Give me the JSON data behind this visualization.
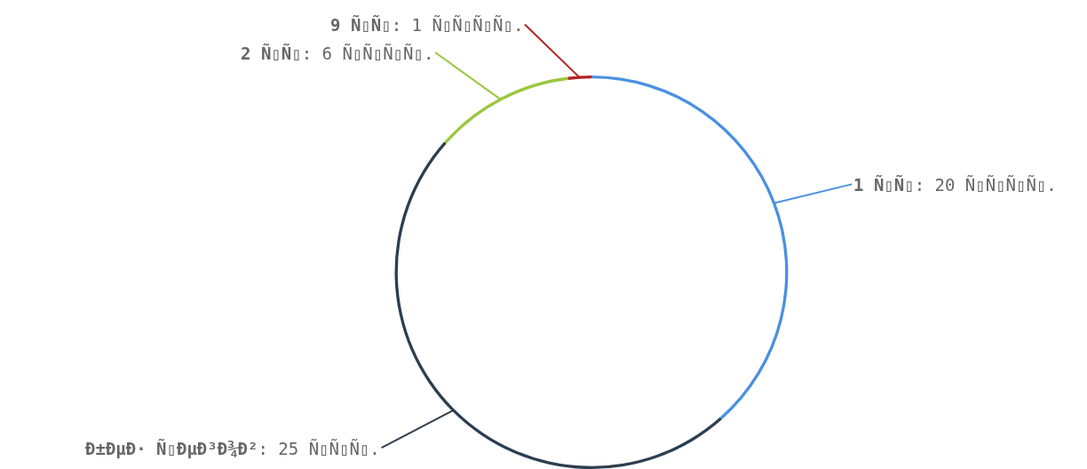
{
  "chart_data": {
    "type": "donut",
    "categories": [
      "1 Ñ▯Ñ▯",
      "Ð±ÐµÐ· Ñ▯ÐµÐ³Ð¾Ð²",
      "2 Ñ▯Ñ▯",
      "9 Ñ▯Ñ▯"
    ],
    "values": [
      20,
      25,
      6,
      1
    ],
    "value_labels": [
      ": 20 Ñ▯Ñ▯Ñ▯Ñ▯.",
      ": 25 Ñ▯Ñ▯Ñ▯.",
      ": 6 Ñ▯Ñ▯Ñ▯Ñ▯.",
      ": 1 Ñ▯Ñ▯Ñ▯Ñ▯."
    ],
    "colors": [
      "#4a90e2",
      "#2c3e50",
      "#9ac73f",
      "#b22222"
    ],
    "legend": false
  }
}
